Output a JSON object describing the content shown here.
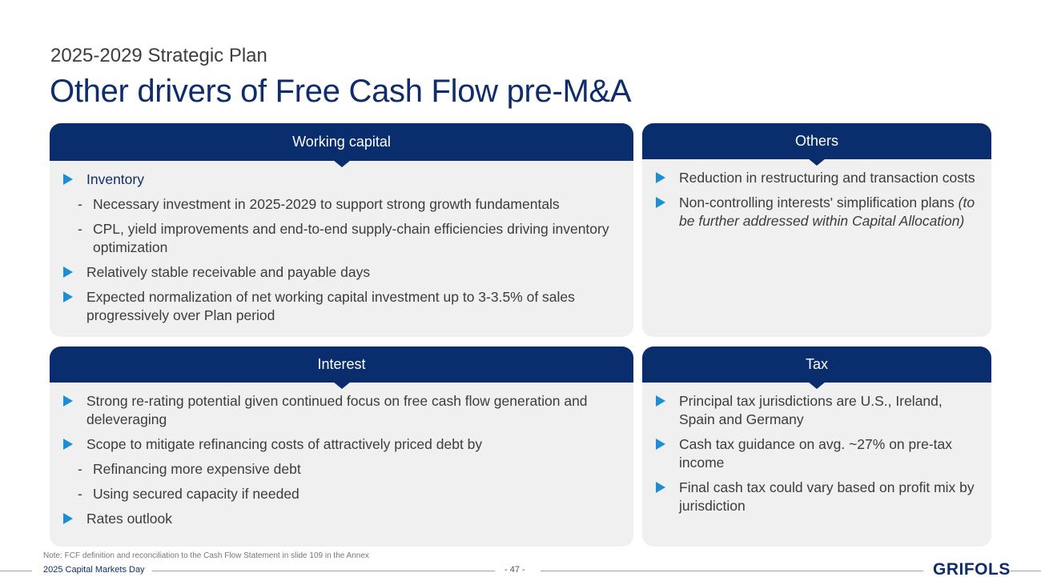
{
  "header": {
    "subtitle": "2025-2029 Strategic Plan",
    "title": "Other drivers of Free Cash Flow pre-M&A"
  },
  "cards": {
    "working_capital": {
      "title": "Working capital",
      "items": [
        {
          "type": "bullet",
          "text": "Inventory"
        },
        {
          "type": "dash",
          "text": "Necessary investment in 2025-2029 to support strong growth fundamentals"
        },
        {
          "type": "dash",
          "text": "CPL, yield improvements and end-to-end supply-chain efficiencies driving inventory optimization"
        },
        {
          "type": "bullet",
          "text": "Relatively stable receivable and payable days"
        },
        {
          "type": "bullet",
          "text": "Expected normalization of net working capital investment up to 3-3.5% of sales progressively over Plan period"
        }
      ]
    },
    "others": {
      "title": "Others",
      "items": [
        {
          "type": "bullet",
          "text": "Reduction in restructuring and transaction costs"
        },
        {
          "type": "bullet",
          "text": "Non-controlling interests' simplification plans",
          "italic": "(to be further addressed within Capital Allocation)"
        }
      ]
    },
    "interest": {
      "title": "Interest",
      "items": [
        {
          "type": "bullet",
          "text": "Strong re-rating potential given continued focus on free cash flow generation and deleveraging"
        },
        {
          "type": "bullet",
          "text": "Scope to mitigate refinancing costs of attractively priced debt by"
        },
        {
          "type": "dash",
          "text": "Refinancing more expensive debt"
        },
        {
          "type": "dash",
          "text": "Using secured capacity if needed"
        },
        {
          "type": "bullet",
          "text": "Rates outlook"
        }
      ]
    },
    "tax": {
      "title": "Tax",
      "items": [
        {
          "type": "bullet",
          "text": "Principal tax jurisdictions are U.S., Ireland, Spain and Germany"
        },
        {
          "type": "bullet",
          "text": "Cash tax guidance on avg. ~27% on pre-tax income"
        },
        {
          "type": "bullet",
          "text": "Final cash tax could vary based on profit mix by jurisdiction"
        }
      ]
    }
  },
  "footer": {
    "note": "Note: FCF definition and reconciliation to the Cash Flow Statement in slide 109 in the Annex",
    "event": "2025 Capital Markets Day",
    "page": "- 47 -",
    "logo": "GRIFOLS"
  }
}
